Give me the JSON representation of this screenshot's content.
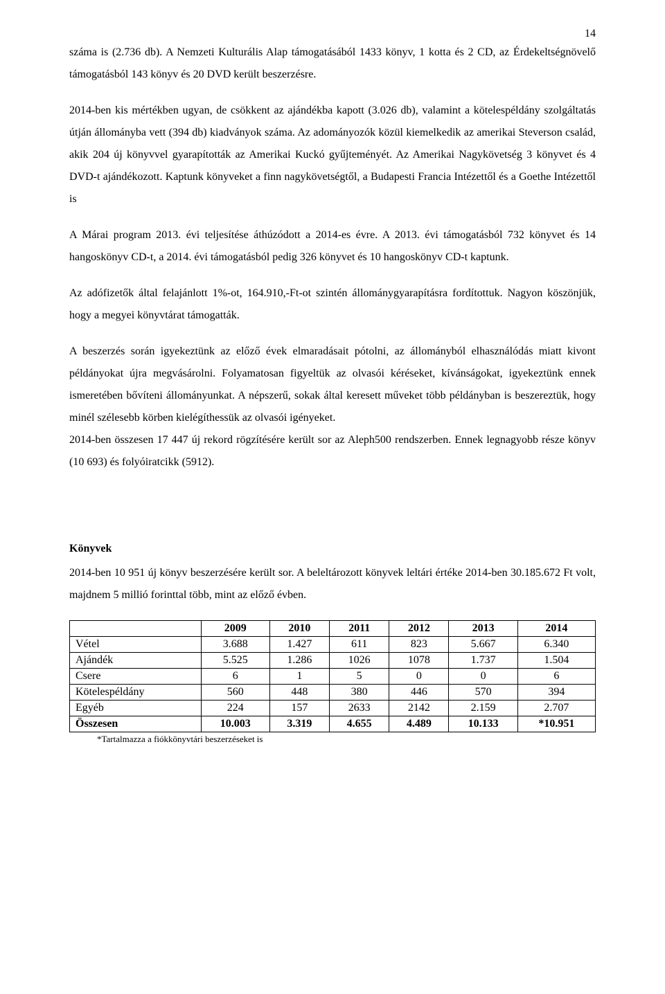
{
  "page_number": "14",
  "paragraphs": {
    "p1": "száma is (2.736 db). A Nemzeti Kulturális Alap támogatásából 1433 könyv, 1 kotta és 2 CD, az Érdekeltségnövelő támogatásból 143 könyv és 20 DVD került beszerzésre.",
    "p2": "2014-ben kis mértékben ugyan, de csökkent az ajándékba kapott (3.026 db), valamint a kötelespéldány szolgáltatás útján állományba vett (394 db) kiadványok száma. Az adományozók közül kiemelkedik az amerikai Steverson család, akik 204 új könyvvel gyarapították az Amerikai Kuckó gyűjteményét. Az Amerikai Nagykövetség 3 könyvet és 4 DVD-t ajándékozott. Kaptunk könyveket a finn nagykövetségtől, a Budapesti Francia Intézettől és a Goethe Intézettől is",
    "p3": "A Márai program 2013. évi teljesítése áthúzódott a 2014-es évre. A 2013. évi támogatásból 732 könyvet és 14 hangoskönyv CD-t, a 2014. évi támogatásból pedig 326 könyvet és 10 hangoskönyv CD-t kaptunk.",
    "p4": "Az adófizetők által felajánlott 1%-ot, 164.910,-Ft-ot szintén állománygyarapításra fordítottuk. Nagyon köszönjük, hogy a megyei könyvtárat támogatták.",
    "p5": "A beszerzés során igyekeztünk az előző évek elmaradásait pótolni, az állományból elhasználódás miatt kivont példányokat újra megvásárolni. Folyamatosan figyeltük az olvasói kéréseket, kívánságokat, igyekeztünk ennek ismeretében bővíteni állományunkat. A népszerű, sokak által keresett műveket több példányban is beszereztük, hogy minél szélesebb körben kielégíthessük az olvasói igényeket.",
    "p6": "2014-ben összesen 17 447 új rekord rögzítésére került sor az Aleph500 rendszerben. Ennek legnagyobb része könyv (10 693) és folyóiratcikk (5912).",
    "section_title": "Könyvek",
    "p7": "2014-ben 10 951 új könyv beszerzésére került sor. A beleltározott könyvek leltári értéke 2014-ben 30.185.672 Ft volt, majdnem 5 millió forinttal több, mint az előző évben."
  },
  "table": {
    "years": [
      "2009",
      "2010",
      "2011",
      "2012",
      "2013",
      "2014"
    ],
    "rows": [
      {
        "label": "Vétel",
        "cells": [
          "3.688",
          "1.427",
          "611",
          "823",
          "5.667",
          "6.340"
        ]
      },
      {
        "label": "Ajándék",
        "cells": [
          "5.525",
          "1.286",
          "1026",
          "1078",
          "1.737",
          "1.504"
        ]
      },
      {
        "label": "Csere",
        "cells": [
          "6",
          "1",
          "5",
          "0",
          "0",
          "6"
        ]
      },
      {
        "label": "Kötelespéldány",
        "cells": [
          "560",
          "448",
          "380",
          "446",
          "570",
          "394"
        ]
      },
      {
        "label": "Egyéb",
        "cells": [
          "224",
          "157",
          "2633",
          "2142",
          "2.159",
          "2.707"
        ]
      }
    ],
    "total": {
      "label": "Összesen",
      "cells": [
        "10.003",
        "3.319",
        "4.655",
        "4.489",
        "10.133",
        "*10.951"
      ]
    },
    "footnote": "*Tartalmazza a fiókkönyvtári beszerzéseket is"
  }
}
